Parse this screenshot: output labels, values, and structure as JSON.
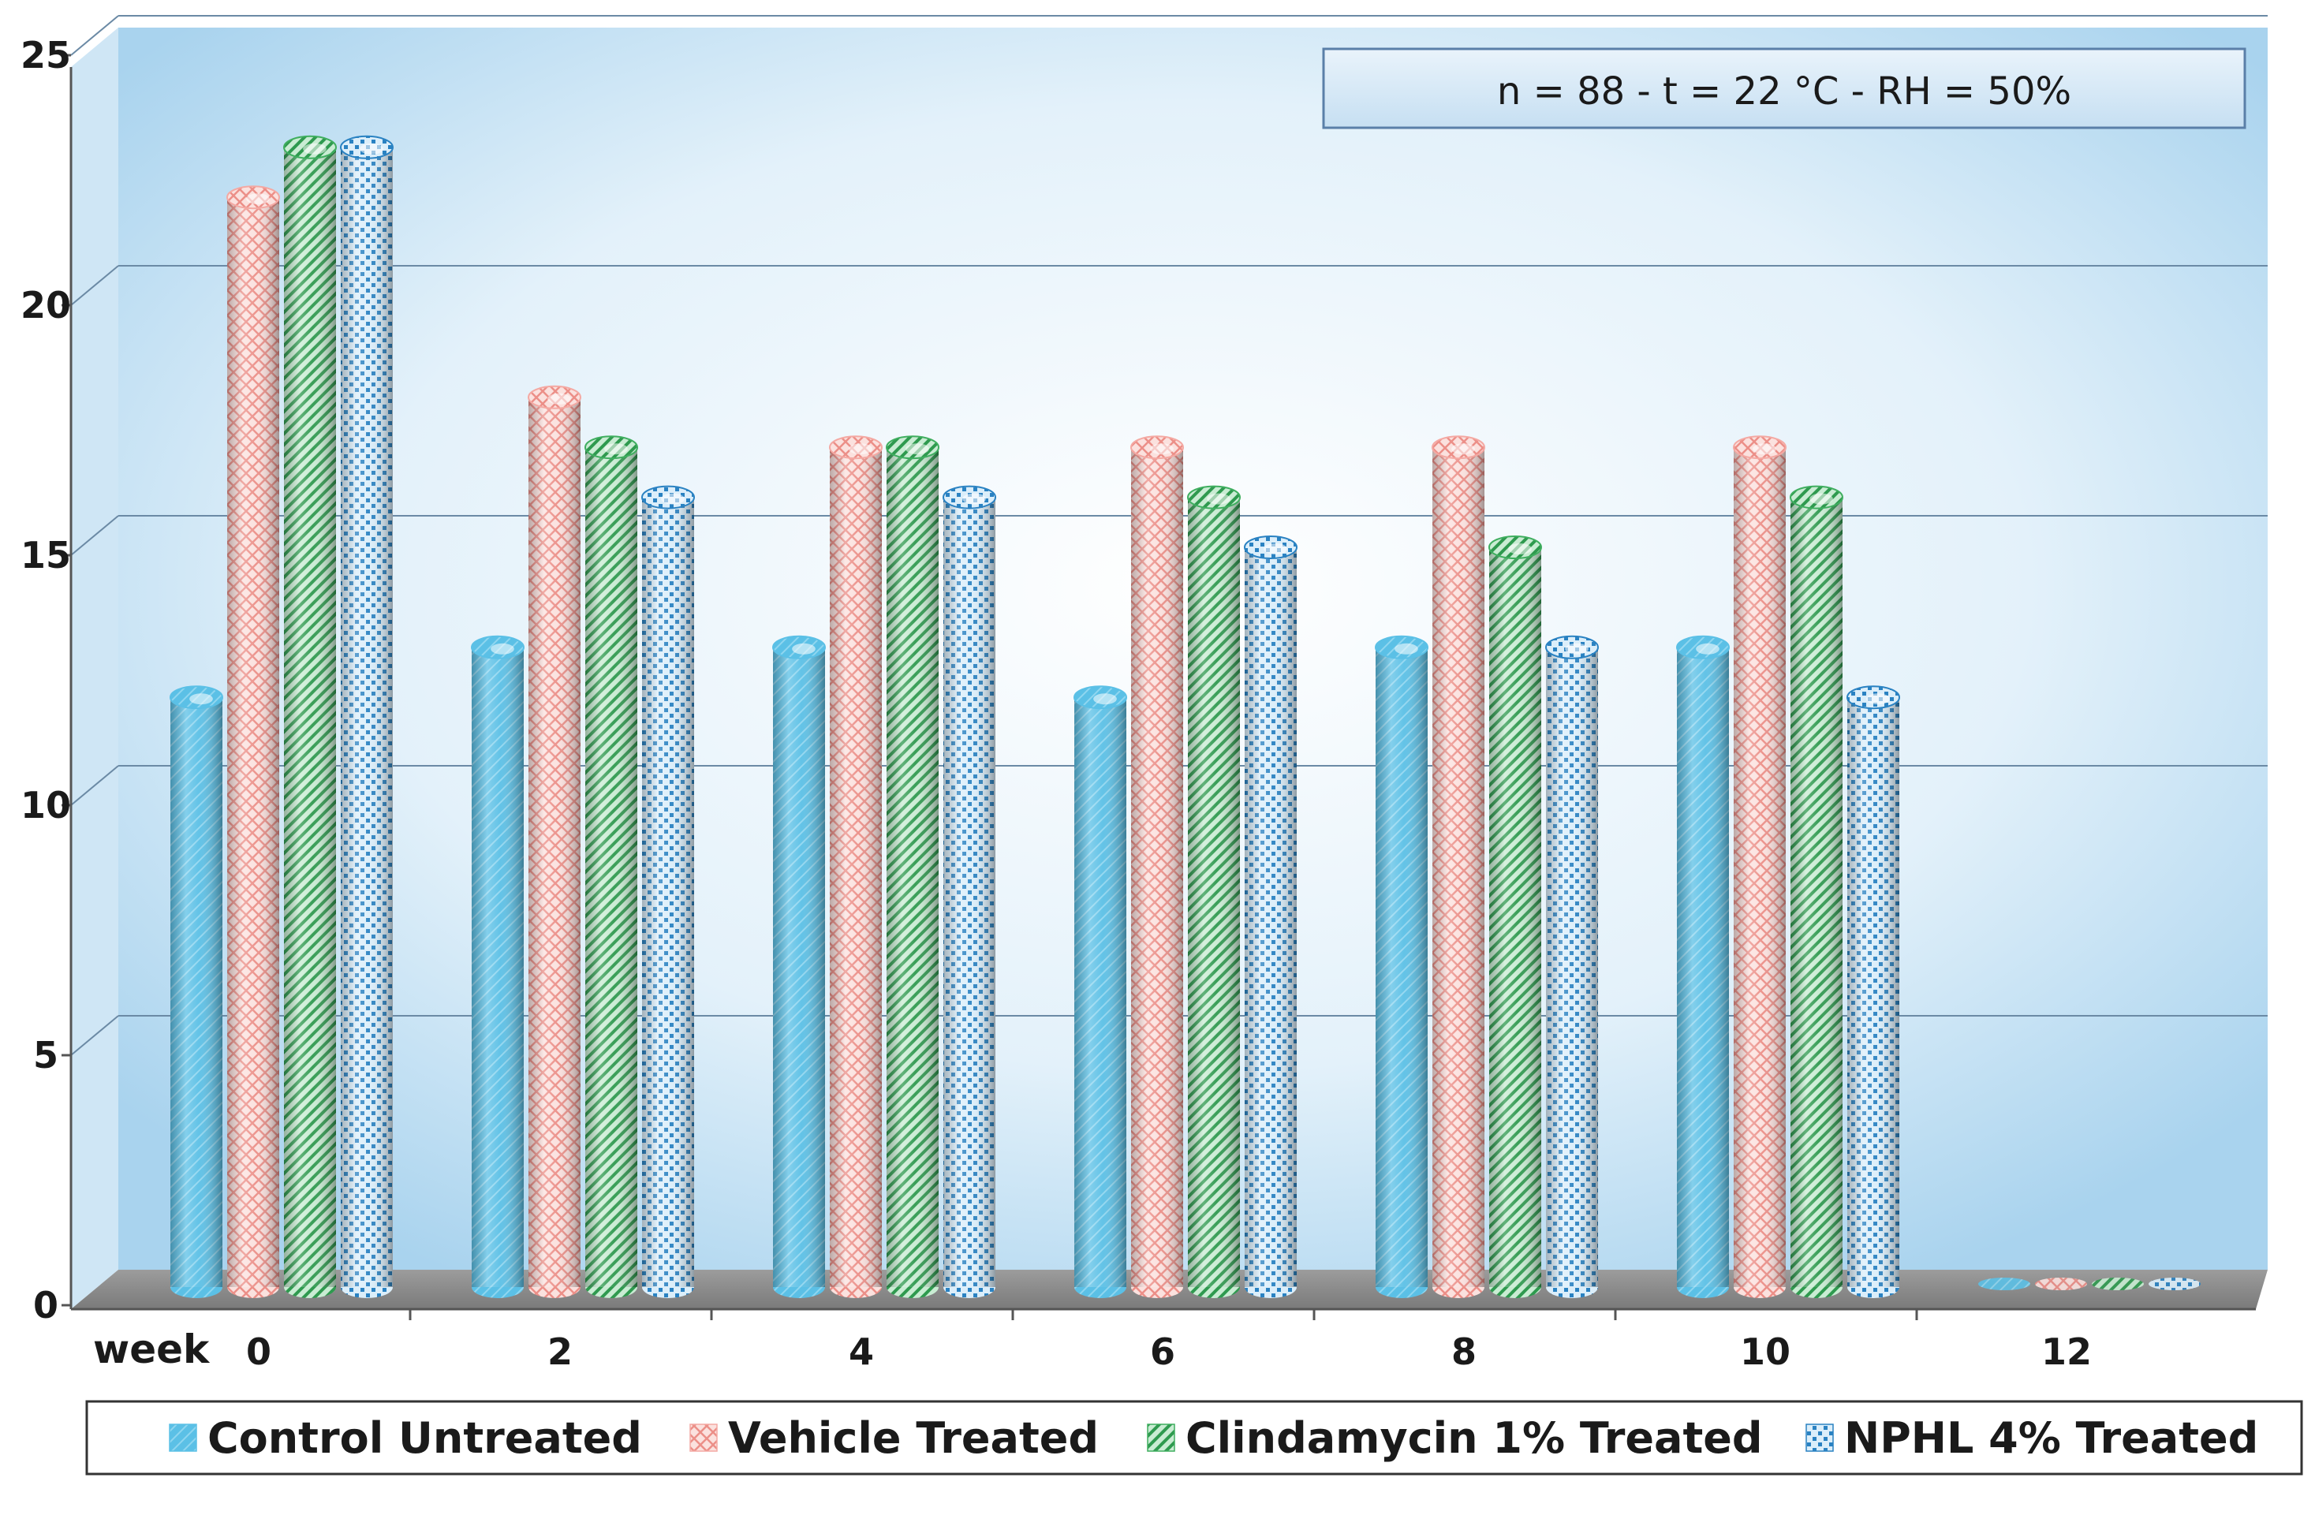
{
  "chart_data": {
    "type": "bar",
    "categories": [
      "0",
      "2",
      "4",
      "6",
      "8",
      "10",
      "12"
    ],
    "xlabel": "week",
    "ylabel": "",
    "ylim": [
      0,
      25
    ],
    "yticks": [
      0,
      5,
      10,
      15,
      20,
      25
    ],
    "grid": true,
    "legend_position": "bottom",
    "annotation": "n = 88 - t = 22 °C - RH = 50%",
    "series": [
      {
        "name": "Control Untreated",
        "values": [
          12,
          13,
          13,
          12,
          13,
          13,
          0
        ],
        "color": "#5bc0e6"
      },
      {
        "name": "Vehicle Treated",
        "values": [
          22,
          18,
          17,
          17,
          17,
          17,
          0
        ],
        "color": "#f4a9a3"
      },
      {
        "name": "Clindamycin 1% Treated",
        "values": [
          23,
          17,
          17,
          16,
          15,
          16,
          0
        ],
        "color": "#3fae5f"
      },
      {
        "name": "NPHL 4% Treated",
        "values": [
          23,
          16,
          16,
          15,
          13,
          12,
          0
        ],
        "color": "#2a82c2"
      }
    ]
  }
}
